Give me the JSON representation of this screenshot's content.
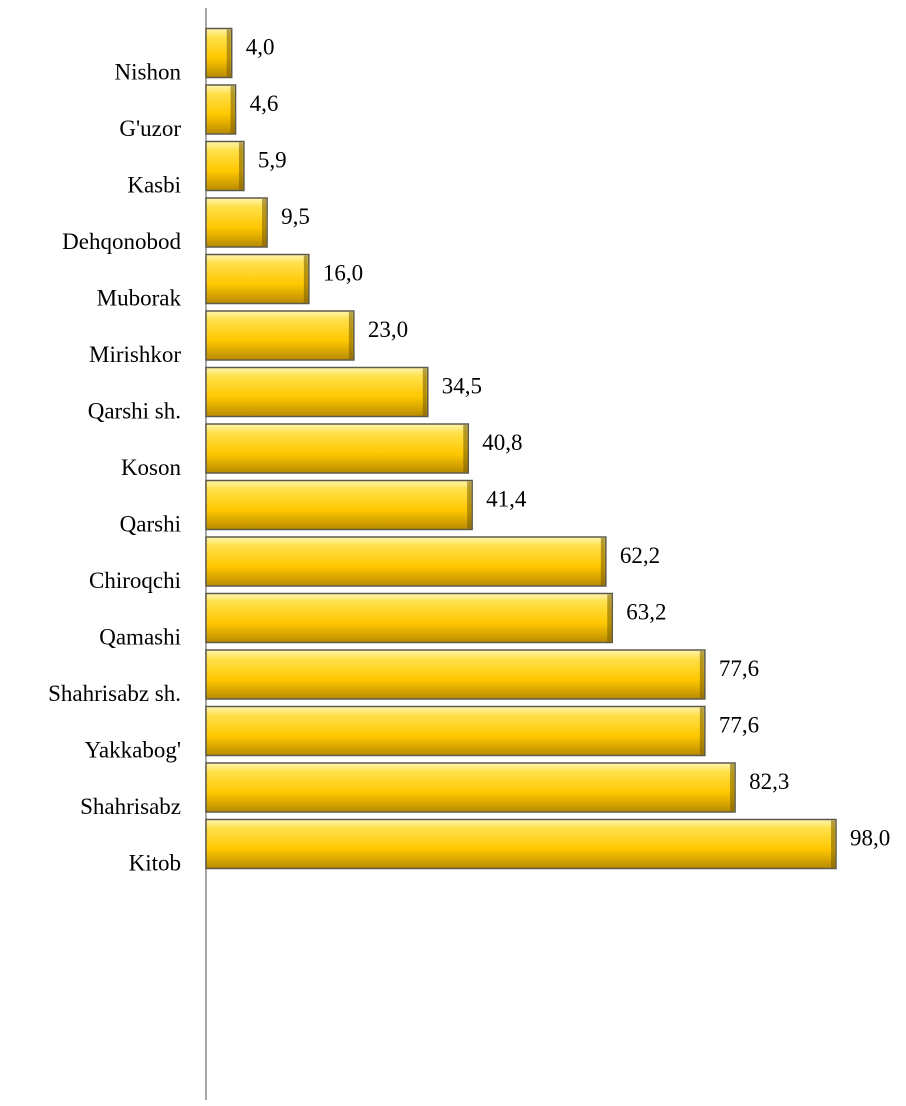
{
  "chart_data": {
    "type": "hbar",
    "categories": [
      "Nishon",
      "G'uzor",
      "Kasbi",
      "Dehqonobod",
      "Muborak",
      "Mirishkor",
      "Qarshi sh.",
      "Koson",
      "Qarshi",
      "Chiroqchi",
      "Qamashi",
      "Shahrisabz sh.",
      "Yakkabog'",
      "Shahrisabz",
      "Kitob"
    ],
    "values": [
      4.0,
      4.6,
      5.9,
      9.5,
      16.0,
      23.0,
      34.5,
      40.8,
      41.4,
      62.2,
      63.2,
      77.6,
      77.6,
      82.3,
      98.0
    ],
    "value_labels": [
      "4,0",
      "4,6",
      "5,9",
      "9,5",
      "16,0",
      "23,0",
      "34,5",
      "40,8",
      "41,4",
      "62,2",
      "63,2",
      "77,6",
      "77,6",
      "82,3",
      "98,0"
    ],
    "color": "#ffcc00"
  }
}
